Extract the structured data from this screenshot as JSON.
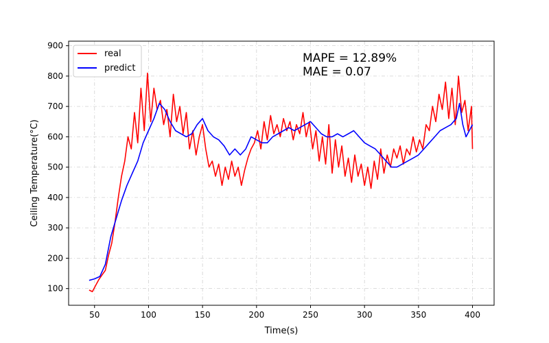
{
  "chart_data": {
    "type": "line",
    "title": "",
    "xlabel": "Time(s)",
    "ylabel": "Ceiling Temperature(°C)",
    "xlim": [
      26,
      420
    ],
    "ylim": [
      45,
      915
    ],
    "xticks": [
      50,
      100,
      150,
      200,
      250,
      300,
      350,
      400
    ],
    "yticks": [
      100,
      200,
      300,
      400,
      500,
      600,
      700,
      800,
      900
    ],
    "grid": true,
    "legend_position": "top-left",
    "annotations": [
      "MAPE = 12.89%",
      "MAE = 0.07"
    ],
    "series": [
      {
        "name": "real",
        "color": "#ff0000",
        "x": [
          45,
          48,
          51,
          54,
          57,
          60,
          63,
          66,
          69,
          72,
          75,
          78,
          81,
          84,
          87,
          90,
          93,
          96,
          99,
          102,
          105,
          108,
          111,
          114,
          117,
          120,
          123,
          126,
          129,
          132,
          135,
          138,
          141,
          144,
          147,
          150,
          153,
          156,
          159,
          162,
          165,
          168,
          171,
          174,
          177,
          180,
          183,
          186,
          189,
          192,
          195,
          198,
          201,
          204,
          207,
          210,
          213,
          216,
          219,
          222,
          225,
          228,
          231,
          234,
          237,
          240,
          243,
          246,
          249,
          252,
          255,
          258,
          261,
          264,
          267,
          270,
          273,
          276,
          279,
          282,
          285,
          288,
          291,
          294,
          297,
          300,
          303,
          306,
          309,
          312,
          315,
          318,
          321,
          324,
          327,
          330,
          333,
          336,
          339,
          342,
          345,
          348,
          351,
          354,
          357,
          360,
          363,
          366,
          369,
          372,
          375,
          378,
          381,
          384,
          387,
          390,
          393,
          396,
          399,
          400
        ],
        "values": [
          95,
          90,
          110,
          130,
          145,
          160,
          210,
          250,
          320,
          400,
          470,
          520,
          600,
          560,
          680,
          580,
          760,
          620,
          810,
          650,
          760,
          690,
          720,
          640,
          690,
          600,
          740,
          650,
          700,
          610,
          680,
          560,
          620,
          540,
          600,
          640,
          560,
          500,
          520,
          470,
          510,
          440,
          500,
          460,
          520,
          470,
          500,
          440,
          490,
          530,
          560,
          580,
          620,
          560,
          650,
          590,
          670,
          610,
          640,
          600,
          660,
          620,
          650,
          590,
          640,
          610,
          680,
          600,
          650,
          560,
          620,
          520,
          600,
          510,
          640,
          480,
          590,
          500,
          570,
          470,
          530,
          450,
          540,
          470,
          510,
          440,
          500,
          430,
          520,
          460,
          560,
          480,
          540,
          500,
          560,
          530,
          570,
          510,
          560,
          540,
          600,
          550,
          590,
          560,
          640,
          620,
          700,
          650,
          740,
          690,
          780,
          660,
          760,
          640,
          800,
          680,
          720,
          620,
          700,
          560
        ]
      },
      {
        "name": "predict",
        "color": "#0000ff",
        "x": [
          45,
          50,
          55,
          60,
          65,
          70,
          75,
          80,
          85,
          90,
          95,
          100,
          105,
          110,
          115,
          120,
          125,
          130,
          135,
          140,
          145,
          150,
          155,
          160,
          165,
          170,
          175,
          180,
          185,
          190,
          195,
          200,
          205,
          210,
          215,
          220,
          225,
          230,
          235,
          240,
          245,
          250,
          255,
          260,
          265,
          270,
          275,
          280,
          285,
          290,
          295,
          300,
          305,
          310,
          315,
          320,
          325,
          330,
          335,
          340,
          345,
          350,
          355,
          360,
          365,
          370,
          375,
          380,
          385,
          388,
          391,
          394,
          397,
          400
        ],
        "values": [
          127,
          132,
          140,
          180,
          270,
          330,
          390,
          440,
          480,
          520,
          580,
          620,
          660,
          710,
          690,
          650,
          620,
          610,
          600,
          610,
          640,
          660,
          620,
          600,
          590,
          570,
          540,
          560,
          540,
          560,
          600,
          590,
          580,
          580,
          600,
          610,
          620,
          630,
          620,
          630,
          640,
          650,
          630,
          610,
          600,
          600,
          610,
          600,
          610,
          620,
          600,
          580,
          570,
          560,
          540,
          520,
          500,
          500,
          510,
          520,
          530,
          540,
          560,
          580,
          600,
          620,
          630,
          640,
          660,
          710,
          640,
          600,
          620,
          640
        ]
      }
    ]
  }
}
